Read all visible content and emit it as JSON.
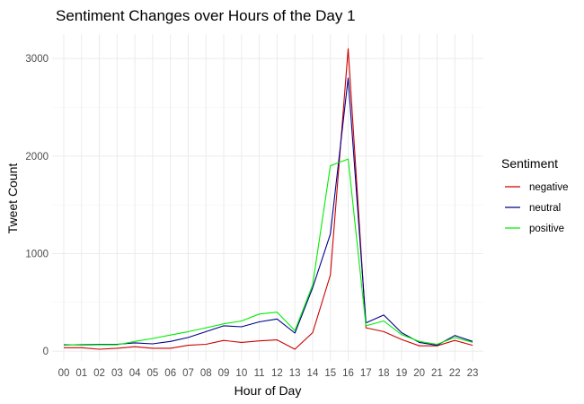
{
  "chart_data": {
    "type": "line",
    "title": "Sentiment Changes over Hours of the Day 1",
    "xlabel": "Hour of Day",
    "ylabel": "Tweet Count",
    "categories": [
      "00",
      "01",
      "02",
      "03",
      "04",
      "05",
      "06",
      "07",
      "08",
      "09",
      "10",
      "11",
      "12",
      "13",
      "14",
      "15",
      "16",
      "17",
      "18",
      "19",
      "20",
      "21",
      "22",
      "23"
    ],
    "ylim": [
      -100,
      3250
    ],
    "yticks": [
      0,
      1000,
      2000,
      3000
    ],
    "yticks_minor": [
      500,
      1500,
      2500
    ],
    "grid": true,
    "legend": {
      "title": "Sentiment",
      "placement": "right"
    },
    "series": [
      {
        "name": "negative",
        "color": "#cc0000",
        "values": [
          35,
          35,
          20,
          30,
          45,
          30,
          30,
          60,
          70,
          110,
          90,
          105,
          115,
          20,
          190,
          780,
          3100,
          240,
          200,
          120,
          55,
          55,
          110,
          60
        ]
      },
      {
        "name": "neutral",
        "color": "#00008b",
        "values": [
          65,
          65,
          70,
          70,
          85,
          75,
          100,
          140,
          200,
          260,
          250,
          300,
          330,
          185,
          650,
          1200,
          2800,
          290,
          370,
          190,
          90,
          60,
          160,
          100
        ]
      },
      {
        "name": "positive",
        "color": "#00ee00",
        "values": [
          70,
          60,
          65,
          65,
          100,
          130,
          165,
          200,
          240,
          280,
          310,
          380,
          400,
          210,
          680,
          1900,
          1970,
          260,
          310,
          170,
          100,
          70,
          140,
          90
        ]
      }
    ]
  }
}
